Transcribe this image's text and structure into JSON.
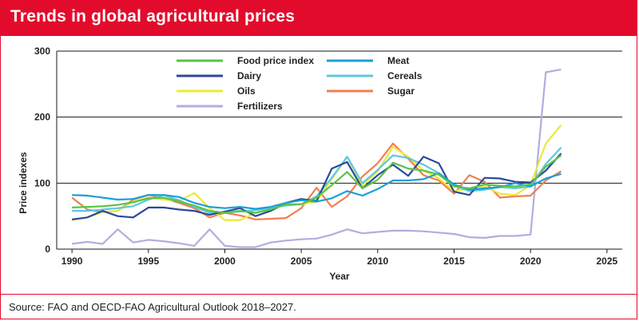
{
  "header": {
    "title": "Trends in global agricultural prices"
  },
  "footer": {
    "source": "Source: FAO and OECD-FAO Agricultural Outlook 2018–2027."
  },
  "chart_data": {
    "type": "line",
    "title": "Trends in global agricultural prices",
    "xlabel": "Year",
    "ylabel": "Price indexes",
    "xlim": [
      1989,
      2026
    ],
    "ylim": [
      0,
      300
    ],
    "xticks": [
      "1990",
      "1995",
      "2000",
      "2005",
      "2010",
      "2015",
      "2020",
      "2025"
    ],
    "yticks": [
      "0",
      "100",
      "200",
      "300"
    ],
    "grid": "horizontal",
    "legend_position": "top",
    "x": [
      1990,
      1991,
      1992,
      1993,
      1994,
      1995,
      1996,
      1997,
      1998,
      1999,
      2000,
      2001,
      2002,
      2003,
      2004,
      2005,
      2006,
      2007,
      2008,
      2009,
      2010,
      2011,
      2012,
      2013,
      2014,
      2015,
      2016,
      2017,
      2018,
      2019,
      2020,
      2021,
      2022
    ],
    "series": [
      {
        "name": "Food price index",
        "color": "#5cc246",
        "values": [
          63,
          64,
          65,
          67,
          71,
          77,
          78,
          72,
          66,
          58,
          55,
          58,
          55,
          60,
          68,
          68,
          78,
          97,
          117,
          92,
          105,
          131,
          122,
          119,
          113,
          95,
          92,
          98,
          96,
          95,
          98,
          125,
          142
        ]
      },
      {
        "name": "Meat",
        "color": "#1a9fd9",
        "values": [
          82,
          81,
          78,
          75,
          76,
          82,
          82,
          79,
          70,
          64,
          62,
          64,
          61,
          64,
          70,
          74,
          72,
          77,
          88,
          81,
          91,
          104,
          104,
          106,
          115,
          98,
          90,
          92,
          94,
          100,
          95,
          107,
          114
        ]
      },
      {
        "name": "Dairy",
        "color": "#2a4a9a",
        "values": [
          45,
          48,
          58,
          50,
          48,
          63,
          63,
          60,
          58,
          52,
          57,
          62,
          50,
          58,
          70,
          76,
          73,
          122,
          132,
          92,
          112,
          128,
          111,
          140,
          130,
          87,
          82,
          108,
          107,
          102,
          101,
          119,
          145
        ]
      },
      {
        "name": "Cereals",
        "color": "#5bc8e0",
        "values": [
          58,
          58,
          60,
          62,
          65,
          75,
          82,
          74,
          64,
          55,
          55,
          57,
          59,
          62,
          66,
          68,
          80,
          108,
          140,
          100,
          120,
          142,
          138,
          128,
          115,
          96,
          88,
          90,
          94,
          92,
          95,
          129,
          154
        ]
      },
      {
        "name": "Oils",
        "color": "#eaea3a",
        "values": [
          44,
          48,
          56,
          58,
          72,
          78,
          75,
          73,
          85,
          62,
          44,
          44,
          55,
          62,
          68,
          68,
          72,
          106,
          140,
          96,
          118,
          155,
          140,
          119,
          107,
          88,
          92,
          95,
          84,
          82,
          97,
          160,
          188
        ]
      },
      {
        "name": "Sugar",
        "color": "#f08050",
        "values": [
          78,
          60,
          56,
          58,
          75,
          82,
          77,
          70,
          62,
          48,
          55,
          51,
          45,
          46,
          47,
          62,
          93,
          64,
          80,
          110,
          130,
          160,
          137,
          112,
          104,
          84,
          112,
          102,
          78,
          80,
          81,
          104,
          118
        ]
      },
      {
        "name": "Fertilizers",
        "color": "#b0aee0",
        "values": [
          8,
          11,
          8,
          30,
          10,
          14,
          12,
          9,
          5,
          30,
          5,
          3,
          3,
          10,
          13,
          15,
          16,
          22,
          30,
          24,
          26,
          28,
          28,
          27,
          25,
          23,
          18,
          17,
          20,
          20,
          22,
          268,
          272
        ]
      }
    ]
  }
}
